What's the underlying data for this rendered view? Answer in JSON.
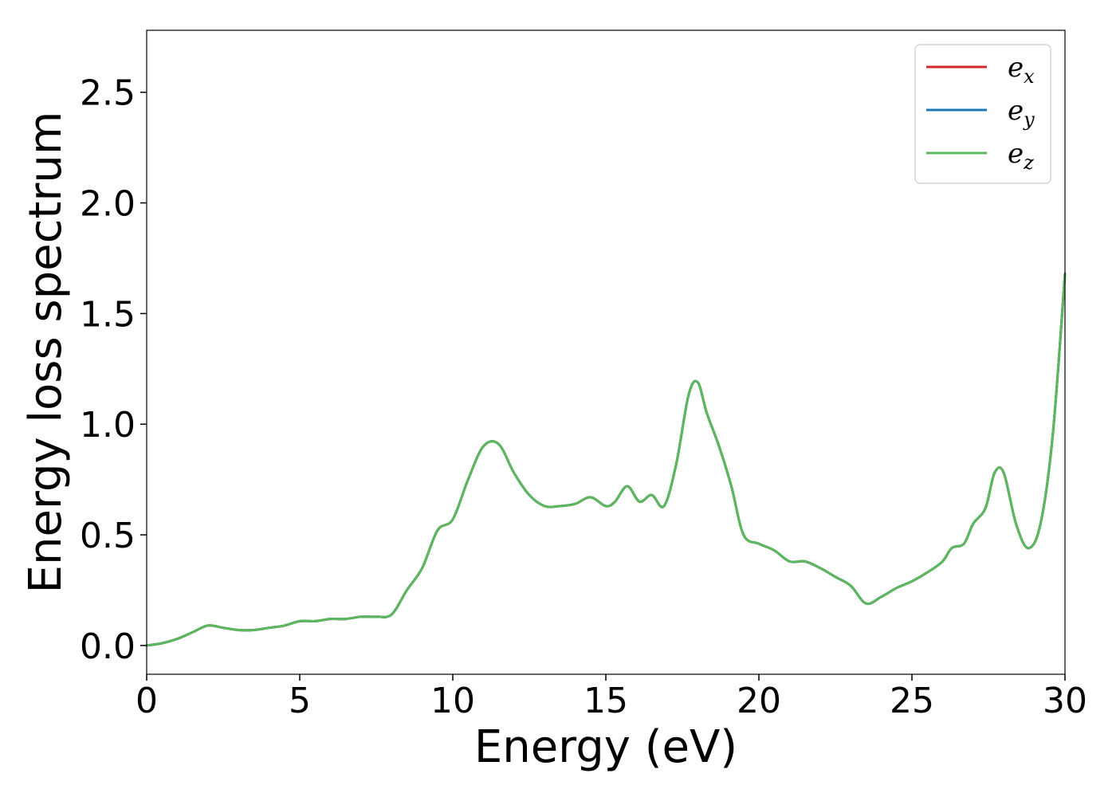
{
  "chart_data": {
    "type": "line",
    "title": "",
    "xlabel": "Energy (eV)",
    "ylabel": "Energy loss spectrum",
    "xlim": [
      0,
      30
    ],
    "ylim": [
      -0.13,
      2.78
    ],
    "xticks": [
      0,
      5,
      10,
      15,
      20,
      25,
      30
    ],
    "xtick_labels": [
      "0",
      "5",
      "10",
      "15",
      "20",
      "25",
      "30"
    ],
    "yticks": [
      0.0,
      0.5,
      1.0,
      1.5,
      2.0,
      2.5
    ],
    "ytick_labels": [
      "0.0",
      "0.5",
      "1.0",
      "1.5",
      "2.0",
      "2.5"
    ],
    "grid": false,
    "legend_position": "top-right",
    "x": [
      0,
      0.5,
      1.0,
      1.5,
      2.0,
      2.5,
      3.0,
      3.5,
      4.0,
      4.5,
      5.0,
      5.5,
      6.0,
      6.5,
      7.0,
      7.5,
      8.0,
      8.5,
      9.0,
      9.5,
      10.0,
      10.5,
      11.0,
      11.5,
      12.0,
      12.5,
      13.0,
      13.5,
      14.0,
      14.5,
      15.0,
      15.3,
      15.7,
      16.1,
      16.5,
      16.9,
      17.3,
      17.7,
      18.0,
      18.3,
      18.7,
      19.1,
      19.5,
      20.0,
      20.5,
      21.0,
      21.5,
      22.0,
      22.5,
      23.0,
      23.5,
      24.0,
      24.5,
      25.0,
      25.5,
      26.0,
      26.3,
      26.7,
      27.0,
      27.4,
      27.7,
      28.0,
      28.4,
      28.8,
      29.2,
      29.6,
      30.0
    ],
    "series": [
      {
        "name": "e_x",
        "label_base": "e",
        "label_sub": "x",
        "color": "#d62728",
        "values": [
          0.0,
          0.01,
          0.03,
          0.06,
          0.09,
          0.08,
          0.07,
          0.07,
          0.08,
          0.09,
          0.11,
          0.11,
          0.12,
          0.12,
          0.13,
          0.13,
          0.14,
          0.25,
          0.35,
          0.52,
          0.57,
          0.75,
          0.9,
          0.91,
          0.78,
          0.68,
          0.63,
          0.63,
          0.64,
          0.67,
          0.63,
          0.65,
          0.72,
          0.65,
          0.68,
          0.63,
          0.82,
          1.13,
          1.19,
          1.05,
          0.9,
          0.72,
          0.5,
          0.46,
          0.43,
          0.38,
          0.38,
          0.35,
          0.31,
          0.27,
          0.19,
          0.22,
          0.26,
          0.29,
          0.33,
          0.38,
          0.44,
          0.46,
          0.55,
          0.62,
          0.78,
          0.78,
          0.55,
          0.44,
          0.55,
          0.95,
          1.68
        ]
      },
      {
        "name": "e_y",
        "label_base": "e",
        "label_sub": "y",
        "color": "#1f77b4",
        "values": [
          0.0,
          0.01,
          0.03,
          0.06,
          0.09,
          0.08,
          0.07,
          0.07,
          0.08,
          0.09,
          0.11,
          0.11,
          0.12,
          0.12,
          0.13,
          0.13,
          0.14,
          0.25,
          0.35,
          0.52,
          0.57,
          0.75,
          0.9,
          0.91,
          0.78,
          0.68,
          0.63,
          0.63,
          0.64,
          0.67,
          0.63,
          0.65,
          0.72,
          0.65,
          0.68,
          0.63,
          0.82,
          1.13,
          1.19,
          1.05,
          0.9,
          0.72,
          0.5,
          0.46,
          0.43,
          0.38,
          0.38,
          0.35,
          0.31,
          0.27,
          0.19,
          0.22,
          0.26,
          0.29,
          0.33,
          0.38,
          0.44,
          0.46,
          0.55,
          0.62,
          0.78,
          0.78,
          0.55,
          0.44,
          0.55,
          0.95,
          1.68
        ]
      },
      {
        "name": "e_z",
        "label_base": "e",
        "label_sub": "z",
        "color": "#5cb85c",
        "values": [
          0.0,
          0.01,
          0.03,
          0.06,
          0.09,
          0.08,
          0.07,
          0.07,
          0.08,
          0.09,
          0.11,
          0.11,
          0.12,
          0.12,
          0.13,
          0.13,
          0.14,
          0.25,
          0.35,
          0.52,
          0.57,
          0.75,
          0.9,
          0.91,
          0.78,
          0.68,
          0.63,
          0.63,
          0.64,
          0.67,
          0.63,
          0.65,
          0.72,
          0.65,
          0.68,
          0.63,
          0.82,
          1.13,
          1.19,
          1.05,
          0.9,
          0.72,
          0.5,
          0.46,
          0.43,
          0.38,
          0.38,
          0.35,
          0.31,
          0.27,
          0.19,
          0.22,
          0.26,
          0.29,
          0.33,
          0.38,
          0.44,
          0.46,
          0.55,
          0.62,
          0.78,
          0.78,
          0.55,
          0.44,
          0.55,
          0.95,
          1.68
        ]
      }
    ]
  }
}
